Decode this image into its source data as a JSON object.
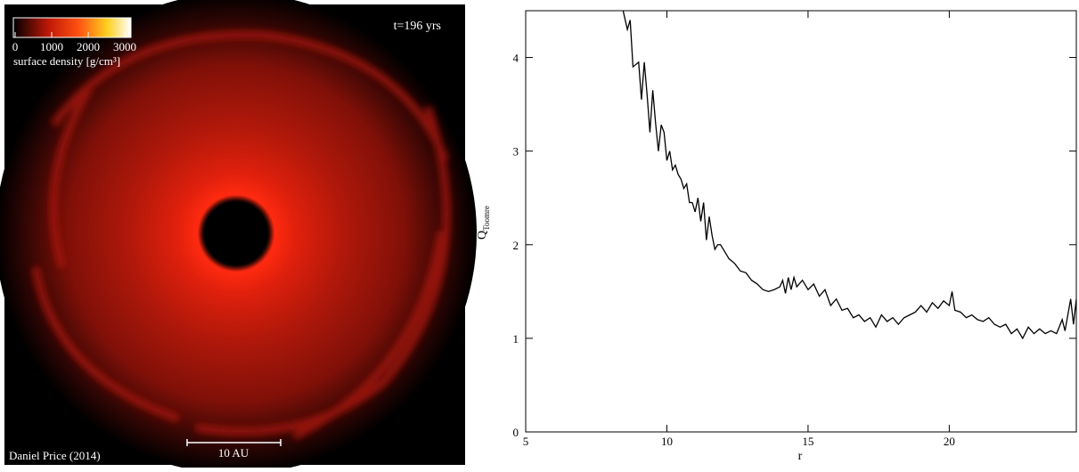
{
  "image": {
    "time_label": "t=196 yrs",
    "colorbar": {
      "ticks": [
        0,
        1000,
        2000,
        3000
      ],
      "label": "surface density [g/cm³]"
    },
    "scale_label": "10 AU",
    "credit": "Daniel Price (2014)"
  },
  "chart_data": {
    "type": "line",
    "xlabel": "r",
    "ylabel": "Q",
    "ylabel_subscript": "Toomre",
    "xlim": [
      5,
      24.5
    ],
    "ylim": [
      0,
      4.5
    ],
    "xticks": [
      5,
      10,
      15,
      20
    ],
    "yticks": [
      0,
      1,
      2,
      3,
      4
    ],
    "color": "#000000",
    "x": [
      8.45,
      8.6,
      8.7,
      8.8,
      9.0,
      9.1,
      9.2,
      9.3,
      9.4,
      9.5,
      9.6,
      9.7,
      9.8,
      9.9,
      10.0,
      10.1,
      10.2,
      10.3,
      10.4,
      10.5,
      10.6,
      10.7,
      10.8,
      10.9,
      11.0,
      11.1,
      11.2,
      11.3,
      11.4,
      11.5,
      11.6,
      11.7,
      11.8,
      11.9,
      12.0,
      12.2,
      12.4,
      12.6,
      12.8,
      13.0,
      13.2,
      13.4,
      13.6,
      13.8,
      14.0,
      14.1,
      14.2,
      14.3,
      14.4,
      14.5,
      14.6,
      14.8,
      15.0,
      15.2,
      15.4,
      15.6,
      15.8,
      16.0,
      16.2,
      16.4,
      16.6,
      16.8,
      17.0,
      17.2,
      17.4,
      17.6,
      17.8,
      18.0,
      18.2,
      18.4,
      18.6,
      18.8,
      19.0,
      19.2,
      19.4,
      19.6,
      19.8,
      20.0,
      20.1,
      20.2,
      20.4,
      20.6,
      20.8,
      21.0,
      21.2,
      21.4,
      21.6,
      21.8,
      22.0,
      22.2,
      22.4,
      22.6,
      22.8,
      23.0,
      23.2,
      23.4,
      23.6,
      23.8,
      24.0,
      24.1,
      24.2,
      24.3,
      24.4,
      24.5
    ],
    "values": [
      4.5,
      4.3,
      4.4,
      3.9,
      3.95,
      3.55,
      3.95,
      3.6,
      3.2,
      3.65,
      3.3,
      3.0,
      3.28,
      3.2,
      2.9,
      3.0,
      2.8,
      2.85,
      2.75,
      2.7,
      2.6,
      2.65,
      2.45,
      2.45,
      2.35,
      2.5,
      2.25,
      2.45,
      2.05,
      2.3,
      2.1,
      1.95,
      2.0,
      2.0,
      1.95,
      1.85,
      1.8,
      1.72,
      1.7,
      1.62,
      1.58,
      1.52,
      1.5,
      1.52,
      1.55,
      1.62,
      1.48,
      1.65,
      1.52,
      1.65,
      1.55,
      1.62,
      1.52,
      1.58,
      1.45,
      1.52,
      1.35,
      1.42,
      1.3,
      1.32,
      1.22,
      1.25,
      1.18,
      1.22,
      1.12,
      1.25,
      1.18,
      1.22,
      1.15,
      1.22,
      1.25,
      1.28,
      1.35,
      1.28,
      1.38,
      1.32,
      1.4,
      1.35,
      1.5,
      1.3,
      1.28,
      1.22,
      1.25,
      1.2,
      1.18,
      1.22,
      1.15,
      1.12,
      1.15,
      1.05,
      1.1,
      1.0,
      1.12,
      1.05,
      1.1,
      1.05,
      1.08,
      1.05,
      1.2,
      1.08,
      1.25,
      1.42,
      1.15,
      1.42
    ]
  }
}
